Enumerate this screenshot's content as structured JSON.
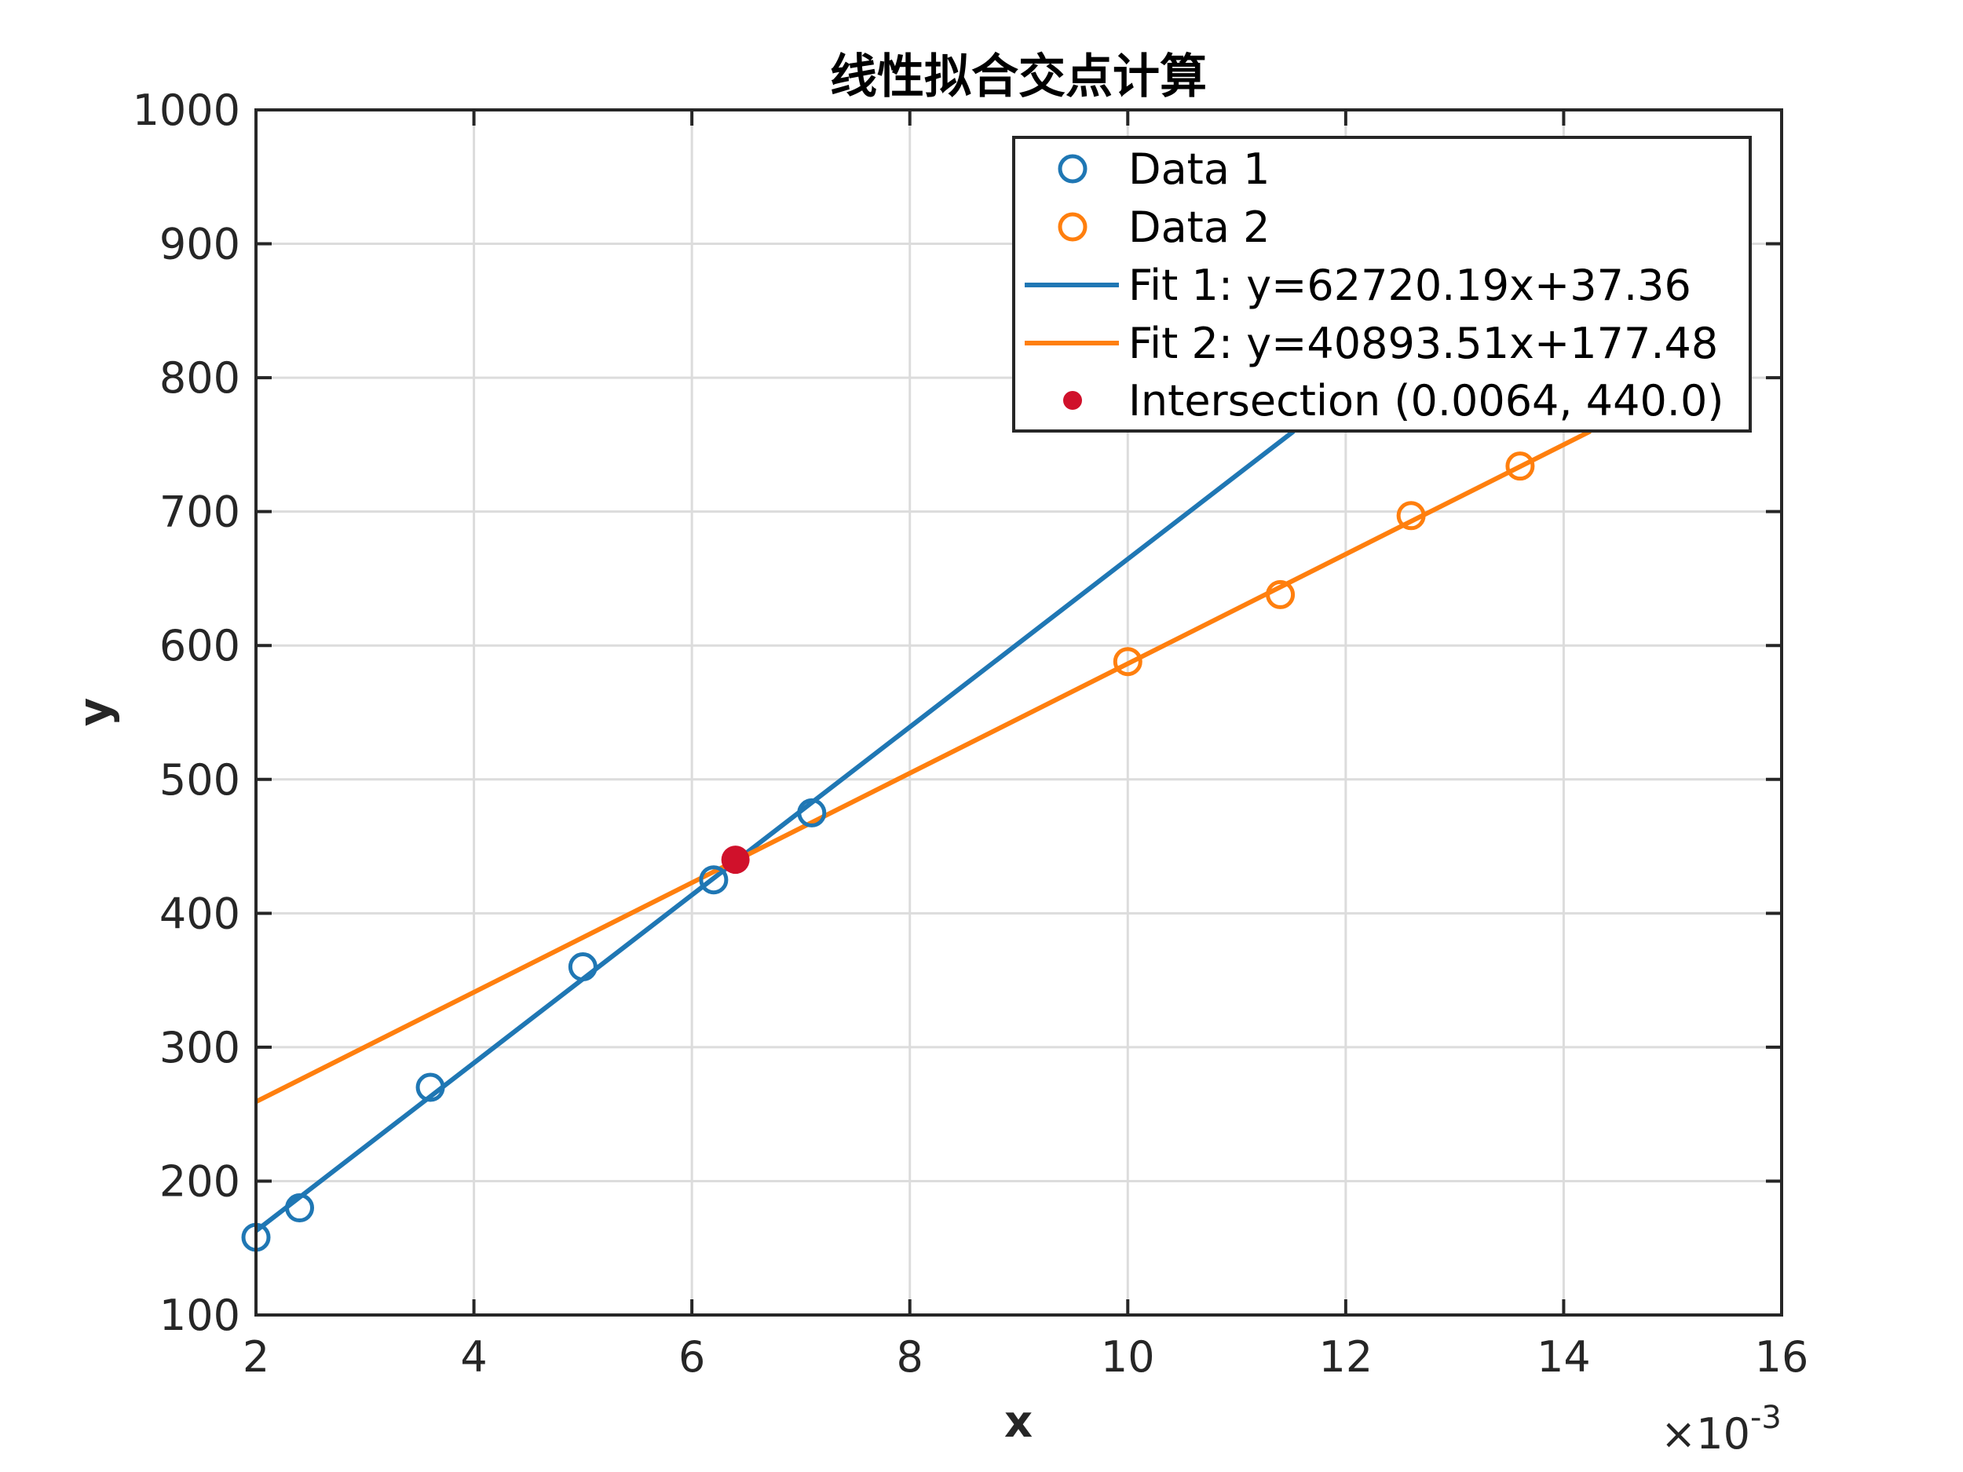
{
  "chart_data": {
    "type": "scatter",
    "title": "线性拟合交点计算",
    "xlabel": "x",
    "ylabel": "y",
    "x_exponent_label": "×10",
    "x_exponent_power": "-3",
    "xlim": [
      0.002,
      0.016
    ],
    "ylim": [
      100,
      1000
    ],
    "grid": true,
    "legend_position": "northeast",
    "x_ticks": [
      "2",
      "4",
      "6",
      "8",
      "10",
      "12",
      "14",
      "16"
    ],
    "y_ticks": [
      "100",
      "200",
      "300",
      "400",
      "500",
      "600",
      "700",
      "800",
      "900",
      "1000"
    ],
    "series": [
      {
        "name": "Data 1",
        "kind": "scatter",
        "marker": "open-circle",
        "color": "#1f77b4",
        "x": [
          0.002,
          0.0024,
          0.0036,
          0.005,
          0.0062,
          0.0071
        ],
        "y": [
          158,
          180,
          270,
          360,
          425,
          475
        ]
      },
      {
        "name": "Data 2",
        "kind": "scatter",
        "marker": "open-circle",
        "color": "#ff7f0e",
        "x": [
          0.01,
          0.0114,
          0.0126,
          0.0136
        ],
        "y": [
          588,
          638,
          697,
          734
        ]
      },
      {
        "name": "Fit 1: y=62720.19x+37.36",
        "kind": "line",
        "color": "#1f77b4",
        "slope": 62720.19,
        "intercept": 37.36
      },
      {
        "name": "Fit 2: y=40893.51x+177.48",
        "kind": "line",
        "color": "#ff7f0e",
        "slope": 40893.51,
        "intercept": 177.48
      },
      {
        "name": "Intersection (0.0064, 440.0)",
        "kind": "point",
        "marker": "filled-circle",
        "color": "#d0112b",
        "x": [
          0.0064
        ],
        "y": [
          440.0
        ]
      }
    ]
  },
  "legend": {
    "items": [
      {
        "label": "Data 1"
      },
      {
        "label": "Data 2"
      },
      {
        "label": "Fit 1: y=62720.19x+37.36"
      },
      {
        "label": "Fit 2: y=40893.51x+177.48"
      },
      {
        "label": "Intersection (0.0064, 440.0)"
      }
    ]
  }
}
